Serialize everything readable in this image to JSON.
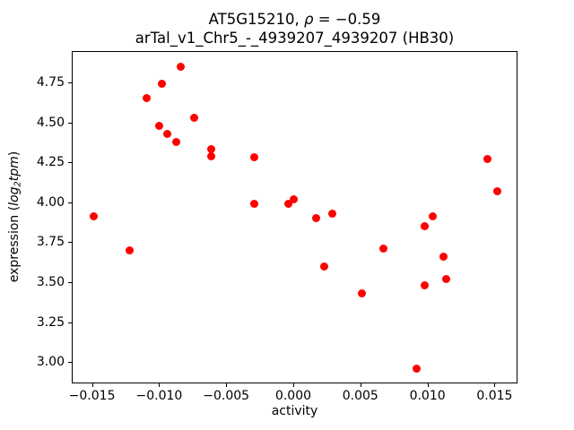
{
  "figure": {
    "title": {
      "gene": "AT5G15210, ",
      "rho_symbol": "ρ",
      "rho_eq": " = −0.59"
    },
    "subtitle": "arTal_v1_Chr5_-_4939207_4939207 (HB30)",
    "axes": {
      "xlabel": "activity",
      "ylabel": {
        "prefix": "expression (",
        "log": "log",
        "sub": "2",
        "word": "tpm",
        "suffix": ")"
      }
    }
  },
  "chart_data": {
    "type": "scatter",
    "title": "AT5G15210, ρ = −0.59",
    "subtitle": "arTal_v1_Chr5_-_4939207_4939207 (HB30)",
    "xlabel": "activity",
    "ylabel": "expression (log2tpm)",
    "marker_color": "#ff0000",
    "axis_color": "#000000",
    "grid": false,
    "legend": "none",
    "xlim": [
      -0.01651,
      0.01671
    ],
    "ylim": [
      2.866,
      4.947
    ],
    "xticks": [
      {
        "value": -0.015,
        "label": "−0.015"
      },
      {
        "value": -0.01,
        "label": "−0.010"
      },
      {
        "value": -0.005,
        "label": "−0.005"
      },
      {
        "value": 0.0,
        "label": "0.000"
      },
      {
        "value": 0.005,
        "label": "0.005"
      },
      {
        "value": 0.01,
        "label": "0.010"
      },
      {
        "value": 0.015,
        "label": "0.015"
      }
    ],
    "yticks": [
      {
        "value": 3.0,
        "label": "3.00"
      },
      {
        "value": 3.25,
        "label": "3.25"
      },
      {
        "value": 3.5,
        "label": "3.50"
      },
      {
        "value": 3.75,
        "label": "3.75"
      },
      {
        "value": 4.0,
        "label": "4.00"
      },
      {
        "value": 4.25,
        "label": "4.25"
      },
      {
        "value": 4.5,
        "label": "4.50"
      },
      {
        "value": 4.75,
        "label": "4.75"
      }
    ],
    "points": [
      [
        -0.0149,
        3.91
      ],
      [
        -0.0122,
        3.7
      ],
      [
        -0.0109,
        4.65
      ],
      [
        -0.01,
        4.48
      ],
      [
        -0.0098,
        4.74
      ],
      [
        -0.0094,
        4.43
      ],
      [
        -0.0087,
        4.38
      ],
      [
        -0.0084,
        4.85
      ],
      [
        -0.0074,
        4.53
      ],
      [
        -0.0061,
        4.33
      ],
      [
        -0.0061,
        4.29
      ],
      [
        -0.0029,
        4.28
      ],
      [
        -0.0029,
        3.99
      ],
      [
        -0.0004,
        3.99
      ],
      [
        0.0,
        4.02
      ],
      [
        0.0017,
        3.9
      ],
      [
        0.0023,
        3.6
      ],
      [
        0.0029,
        3.93
      ],
      [
        0.0051,
        3.43
      ],
      [
        0.0067,
        3.71
      ],
      [
        0.0092,
        2.96
      ],
      [
        0.0098,
        3.85
      ],
      [
        0.0098,
        3.48
      ],
      [
        0.0104,
        3.91
      ],
      [
        0.0112,
        3.66
      ],
      [
        0.0114,
        3.52
      ],
      [
        0.0145,
        4.27
      ],
      [
        0.0152,
        4.07
      ]
    ]
  }
}
